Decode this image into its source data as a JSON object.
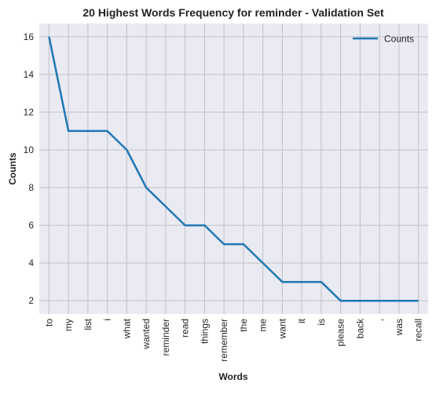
{
  "colors": {
    "background": "#ffffff",
    "plot_background": "#eaeaf2",
    "grid": "#c0c0c8",
    "line": "#1f77b4"
  },
  "chart_data": {
    "type": "line",
    "title": "20 Highest Words Frequency for reminder - Validation Set",
    "xlabel": "Words",
    "ylabel": "Counts",
    "categories": [
      "to",
      "my",
      "list",
      "i",
      "what",
      "wanted",
      "reminder",
      "read",
      "things",
      "remember",
      "the",
      "me",
      "want",
      "it",
      "is",
      "please",
      "back",
      ",",
      "was",
      "recall"
    ],
    "series": [
      {
        "name": "Counts",
        "values": [
          16,
          11,
          11,
          11,
          10,
          8,
          7,
          6,
          6,
          5,
          5,
          4,
          3,
          3,
          3,
          2,
          2,
          2,
          2,
          2
        ]
      }
    ],
    "ylim": [
      1.3,
      16.7
    ],
    "yticks": [
      2,
      4,
      6,
      8,
      10,
      12,
      14,
      16
    ],
    "grid": true,
    "legend": "top-right"
  }
}
